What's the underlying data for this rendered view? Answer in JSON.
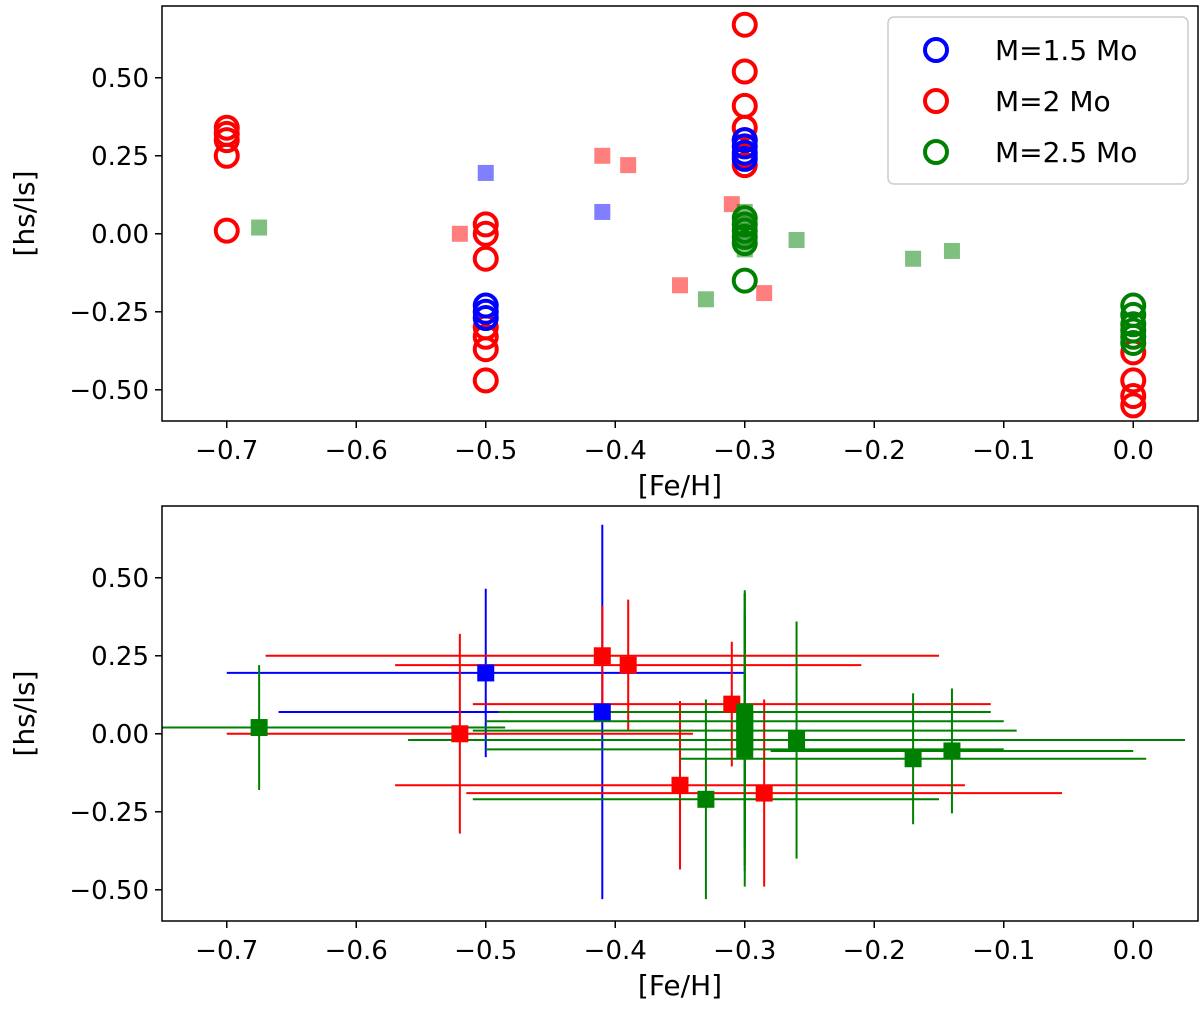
{
  "chart_data": [
    {
      "type": "scatter",
      "title": "",
      "xlabel": "[Fe/H]",
      "ylabel": "[hs/ls]",
      "xlim": [
        -0.75,
        0.05
      ],
      "ylim": [
        -0.6,
        0.73
      ],
      "xticks": [
        -0.7,
        -0.6,
        -0.5,
        -0.4,
        -0.3,
        -0.2,
        -0.1,
        0.0
      ],
      "xtick_labels": [
        "−0.7",
        "−0.6",
        "−0.5",
        "−0.4",
        "−0.3",
        "−0.2",
        "−0.1",
        "0.0"
      ],
      "yticks": [
        0.5,
        0.25,
        0.0,
        -0.25,
        -0.5
      ],
      "ytick_labels": [
        "0.50",
        "0.25",
        "0.00",
        "−0.25",
        "−0.50"
      ],
      "legend_position": "top-right",
      "legend": [
        {
          "label": "M=1.5 Mo",
          "color": "#0000ff"
        },
        {
          "label": "M=2 Mo",
          "color": "#ff0000"
        },
        {
          "label": "M=2.5 Mo",
          "color": "#008000"
        }
      ],
      "models": [
        {
          "name": "M=2 Mo",
          "color": "#ff0000",
          "marker": "open-circle",
          "points": [
            [
              -0.7,
              0.34
            ],
            [
              -0.7,
              0.32
            ],
            [
              -0.7,
              0.3
            ],
            [
              -0.7,
              0.25
            ],
            [
              -0.7,
              0.01
            ],
            [
              -0.5,
              0.03
            ],
            [
              -0.5,
              0.0
            ],
            [
              -0.5,
              -0.08
            ],
            [
              -0.5,
              -0.3
            ],
            [
              -0.5,
              -0.33
            ],
            [
              -0.5,
              -0.37
            ],
            [
              -0.5,
              -0.47
            ],
            [
              -0.3,
              0.67
            ],
            [
              -0.3,
              0.52
            ],
            [
              -0.3,
              0.41
            ],
            [
              -0.3,
              0.34
            ],
            [
              -0.3,
              0.3
            ],
            [
              -0.3,
              0.25
            ],
            [
              -0.3,
              0.22
            ],
            [
              0.0,
              -0.38
            ],
            [
              0.0,
              -0.47
            ],
            [
              0.0,
              -0.52
            ],
            [
              0.0,
              -0.55
            ]
          ]
        },
        {
          "name": "M=1.5 Mo",
          "color": "#0000ff",
          "marker": "open-circle",
          "points": [
            [
              -0.5,
              -0.23
            ],
            [
              -0.5,
              -0.25
            ],
            [
              -0.5,
              -0.27
            ],
            [
              -0.3,
              0.3
            ],
            [
              -0.3,
              0.28
            ],
            [
              -0.3,
              0.26
            ],
            [
              -0.3,
              0.24
            ]
          ]
        },
        {
          "name": "M=2.5 Mo",
          "color": "#008000",
          "marker": "open-circle",
          "points": [
            [
              -0.3,
              0.05
            ],
            [
              -0.3,
              0.03
            ],
            [
              -0.3,
              0.01
            ],
            [
              -0.3,
              -0.01
            ],
            [
              -0.3,
              -0.03
            ],
            [
              -0.3,
              -0.15
            ],
            [
              0.0,
              -0.23
            ],
            [
              0.0,
              -0.26
            ],
            [
              0.0,
              -0.29
            ],
            [
              0.0,
              -0.31
            ],
            [
              0.0,
              -0.33
            ],
            [
              0.0,
              -0.35
            ]
          ]
        }
      ],
      "observations": [
        {
          "color": "#0000ff",
          "points": [
            [
              -0.5,
              0.195
            ],
            [
              -0.41,
              0.07
            ]
          ]
        },
        {
          "color": "#ff0000",
          "points": [
            [
              -0.52,
              0.0
            ],
            [
              -0.41,
              0.25
            ],
            [
              -0.39,
              0.22
            ],
            [
              -0.35,
              -0.165
            ],
            [
              -0.31,
              0.095
            ],
            [
              -0.285,
              -0.19
            ]
          ]
        },
        {
          "color": "#008000",
          "points": [
            [
              -0.675,
              0.02
            ],
            [
              -0.33,
              -0.21
            ],
            [
              -0.3,
              0.07
            ],
            [
              -0.3,
              0.04
            ],
            [
              -0.3,
              0.01
            ],
            [
              -0.3,
              -0.02
            ],
            [
              -0.3,
              -0.05
            ],
            [
              -0.26,
              -0.02
            ],
            [
              -0.17,
              -0.08
            ],
            [
              -0.14,
              -0.055
            ]
          ]
        }
      ]
    },
    {
      "type": "scatter",
      "title": "",
      "xlabel": "[Fe/H]",
      "ylabel": "[hs/ls]",
      "xlim": [
        -0.75,
        0.05
      ],
      "ylim": [
        -0.6,
        0.73
      ],
      "xticks": [
        -0.7,
        -0.6,
        -0.5,
        -0.4,
        -0.3,
        -0.2,
        -0.1,
        0.0
      ],
      "xtick_labels": [
        "−0.7",
        "−0.6",
        "−0.5",
        "−0.4",
        "−0.3",
        "−0.2",
        "−0.1",
        "0.0"
      ],
      "yticks": [
        0.5,
        0.25,
        0.0,
        -0.25,
        -0.5
      ],
      "ytick_labels": [
        "0.50",
        "0.25",
        "0.00",
        "−0.25",
        "−0.50"
      ],
      "observations_with_errors": [
        {
          "color": "#0000ff",
          "points": [
            {
              "x": -0.5,
              "y": 0.195,
              "xerr": 0.2,
              "yerr": 0.27
            },
            {
              "x": -0.41,
              "y": 0.07,
              "xerr": 0.25,
              "yerr": 0.6
            }
          ]
        },
        {
          "color": "#ff0000",
          "points": [
            {
              "x": -0.52,
              "y": 0.0,
              "xerr": 0.18,
              "yerr": 0.32
            },
            {
              "x": -0.41,
              "y": 0.25,
              "xerr": 0.26,
              "yerr": 0.16
            },
            {
              "x": -0.39,
              "y": 0.22,
              "xerr": 0.18,
              "yerr": 0.21
            },
            {
              "x": -0.35,
              "y": -0.165,
              "xerr": 0.22,
              "yerr": 0.27
            },
            {
              "x": -0.31,
              "y": 0.095,
              "xerr": 0.2,
              "yerr": 0.2
            },
            {
              "x": -0.285,
              "y": -0.19,
              "xerr": 0.23,
              "yerr": 0.3
            }
          ]
        },
        {
          "color": "#008000",
          "points": [
            {
              "x": -0.675,
              "y": 0.02,
              "xerr": 0.19,
              "yerr": 0.2
            },
            {
              "x": -0.33,
              "y": -0.21,
              "xerr": 0.18,
              "yerr": 0.32
            },
            {
              "x": -0.3,
              "y": 0.07,
              "xerr": 0.19,
              "yerr": 0.38
            },
            {
              "x": -0.3,
              "y": 0.04,
              "xerr": 0.2,
              "yerr": 0.41
            },
            {
              "x": -0.3,
              "y": 0.01,
              "xerr": 0.21,
              "yerr": 0.45
            },
            {
              "x": -0.3,
              "y": -0.02,
              "xerr": 0.17,
              "yerr": 0.4
            },
            {
              "x": -0.3,
              "y": -0.05,
              "xerr": 0.2,
              "yerr": 0.44
            },
            {
              "x": -0.26,
              "y": -0.02,
              "xerr": 0.3,
              "yerr": 0.38
            },
            {
              "x": -0.17,
              "y": -0.08,
              "xerr": 0.18,
              "yerr": 0.21
            },
            {
              "x": -0.14,
              "y": -0.055,
              "xerr": 0.14,
              "yerr": 0.2
            }
          ]
        }
      ]
    }
  ]
}
